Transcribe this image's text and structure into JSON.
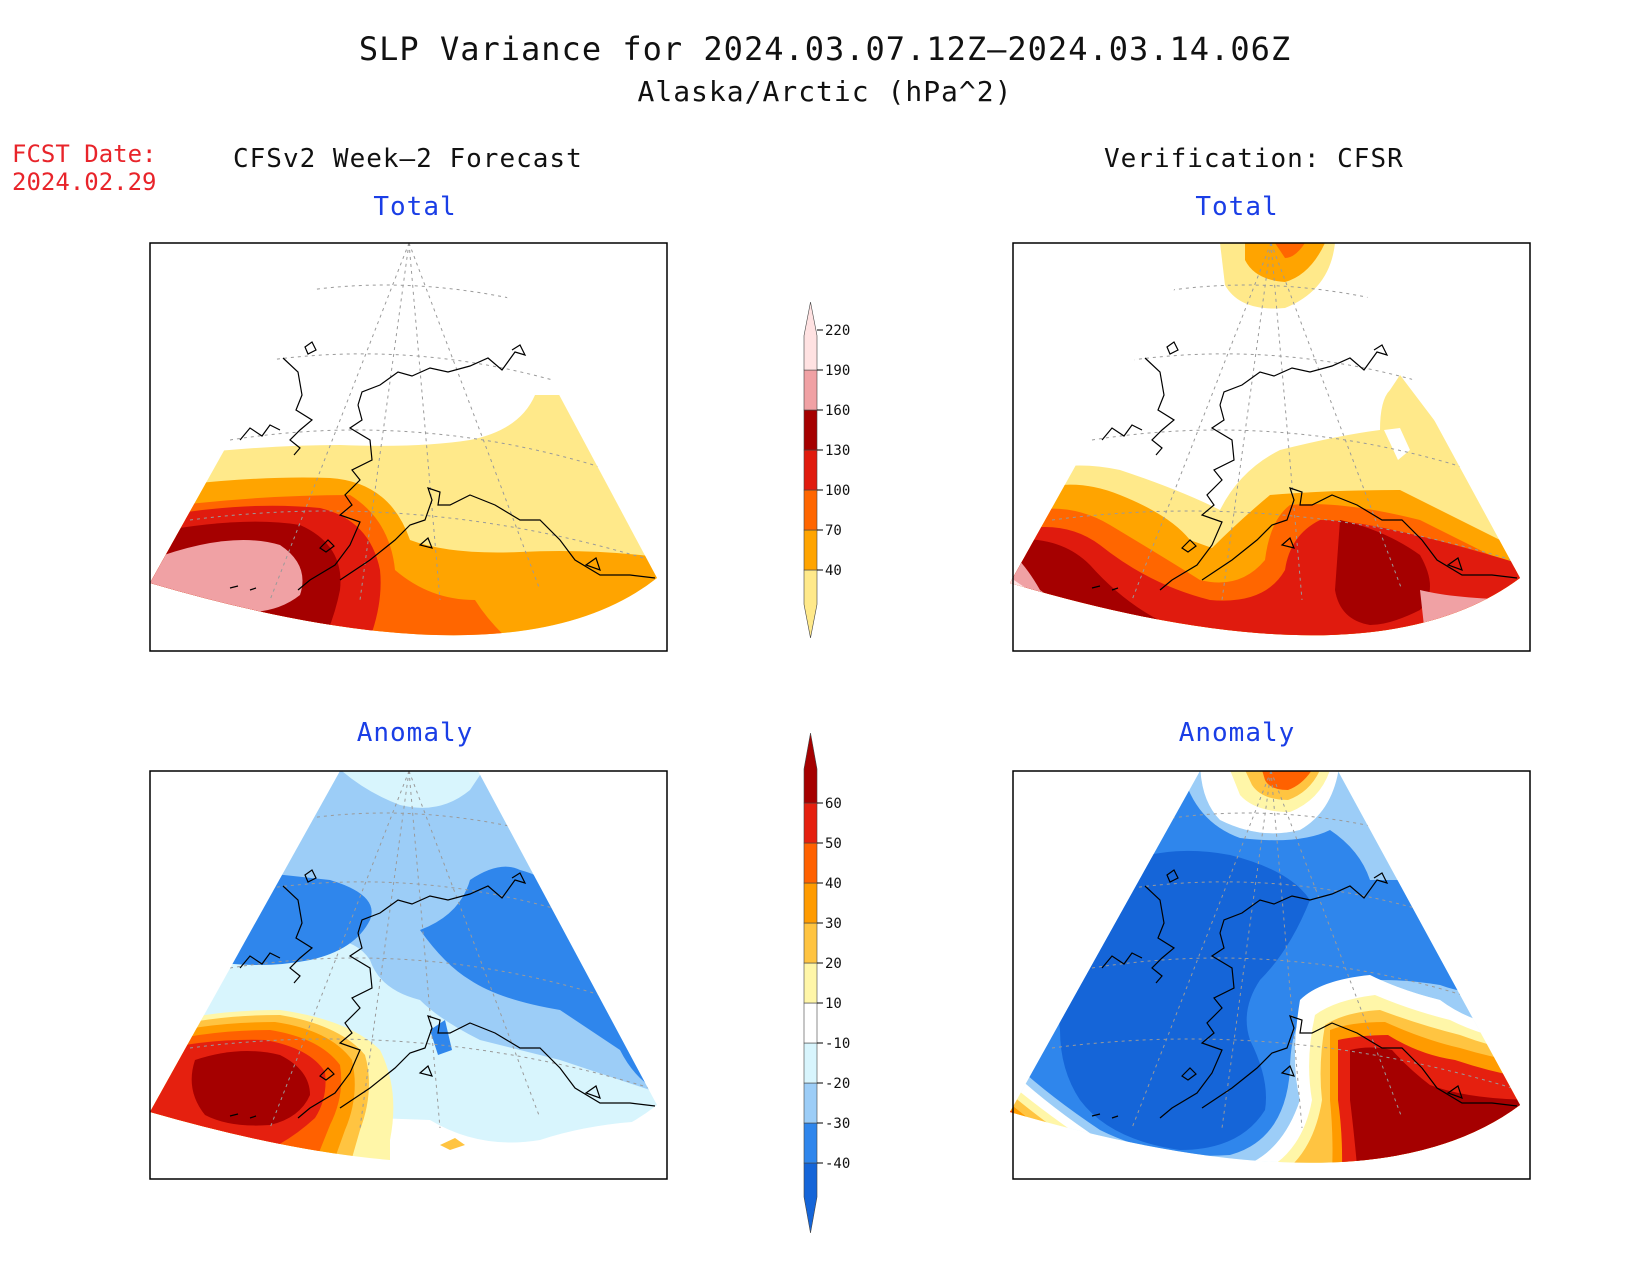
{
  "title": "SLP Variance for 2024.03.07.12Z–2024.03.14.06Z",
  "subtitle": "Alaska/Arctic (hPa^2)",
  "fcst": {
    "label": "FCST Date:",
    "date": "2024.02.29"
  },
  "columns": {
    "left": "CFSv2 Week–2 Forecast",
    "right": "Verification: CFSR"
  },
  "panels": {
    "fcst_total": "Total",
    "verif_total": "Total",
    "fcst_anomaly": "Anomaly",
    "verif_anomaly": "Anomaly"
  },
  "total_colorbar": {
    "colors": [
      "#ffe98a",
      "#ffa400",
      "#ff6600",
      "#e01b0e",
      "#a50000",
      "#f0a1a4",
      "#ffe2e2"
    ],
    "ticks": [
      "40",
      "70",
      "100",
      "130",
      "160",
      "190",
      "220"
    ]
  },
  "anomaly_colorbar": {
    "colors": [
      "#1565d8",
      "#2f86ec",
      "#9ccdf7",
      "#d8f5fd",
      "#ffffff",
      "#fff6a8",
      "#ffc441",
      "#ff9b00",
      "#ff6100",
      "#e5200f",
      "#a50000"
    ],
    "ticks": [
      "-40",
      "-30",
      "-20",
      "-10",
      "10",
      "20",
      "30",
      "40",
      "50",
      "60"
    ]
  }
}
